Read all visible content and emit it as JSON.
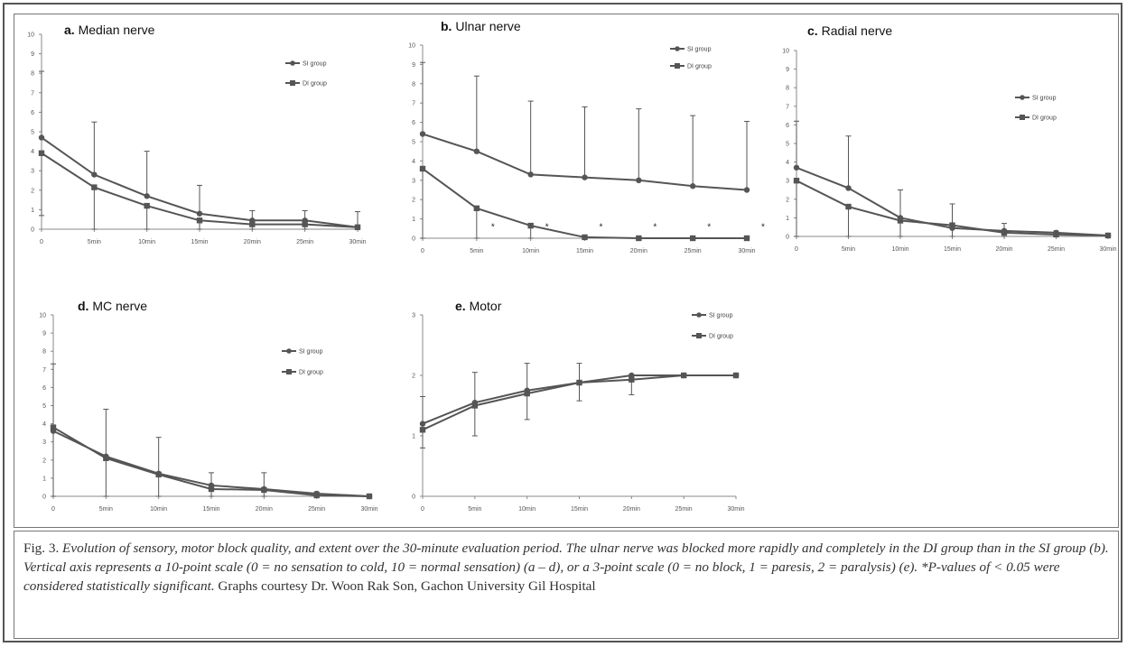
{
  "x_categories": [
    "0",
    "5min",
    "10min",
    "15min",
    "20min",
    "25min",
    "30min"
  ],
  "legend": {
    "si": "SI group",
    "di": "DI group"
  },
  "chart_data": [
    {
      "id": "a",
      "type": "line",
      "letter": "a.",
      "title": "Median nerve",
      "ylim": [
        0,
        10
      ],
      "yticks": [
        0,
        1,
        2,
        3,
        4,
        5,
        6,
        7,
        8,
        9,
        10
      ],
      "series": [
        {
          "name": "SI group",
          "marker": "circle",
          "values": [
            4.7,
            2.8,
            1.7,
            0.8,
            0.45,
            0.45,
            0.1
          ],
          "err_up": [
            3.4,
            2.7,
            2.3,
            1.45,
            0.5,
            0.5,
            0.8
          ]
        },
        {
          "name": "DI group",
          "marker": "square",
          "values": [
            3.9,
            2.15,
            1.2,
            0.45,
            0.25,
            0.25,
            0.1
          ],
          "err_down": [
            3.2,
            2.15,
            1.2,
            0.45,
            0.25,
            0.25,
            0.1
          ]
        }
      ],
      "asterisks": []
    },
    {
      "id": "b",
      "type": "line",
      "letter": "b.",
      "title": "Ulnar nerve",
      "ylim": [
        0,
        10
      ],
      "yticks": [
        0,
        1,
        2,
        3,
        4,
        5,
        6,
        7,
        8,
        9,
        10
      ],
      "series": [
        {
          "name": "SI group",
          "marker": "circle",
          "values": [
            5.4,
            4.5,
            3.3,
            3.15,
            3.0,
            2.7,
            2.5
          ],
          "err_up": [
            3.7,
            3.9,
            3.8,
            3.65,
            3.7,
            3.65,
            3.55
          ]
        },
        {
          "name": "DI group",
          "marker": "square",
          "values": [
            3.6,
            1.55,
            0.65,
            0.05,
            0.0,
            0.0,
            0.0
          ],
          "err_down": [
            3.6,
            1.55,
            0.65,
            0.05,
            0,
            0,
            0
          ]
        }
      ],
      "asterisks": [
        1,
        2,
        3,
        4,
        5,
        6
      ],
      "asterisk_text": "*"
    },
    {
      "id": "c",
      "type": "line",
      "letter": "c.",
      "title": "Radial nerve",
      "ylim": [
        0,
        10
      ],
      "yticks": [
        0,
        1,
        2,
        3,
        4,
        5,
        6,
        7,
        8,
        9,
        10
      ],
      "series": [
        {
          "name": "SI group",
          "marker": "circle",
          "values": [
            3.7,
            2.6,
            1.0,
            0.45,
            0.3,
            0.2,
            0.05
          ],
          "err_up": [
            2.5,
            2.8,
            1.5,
            1.3,
            0.4,
            0.1,
            0.05
          ]
        },
        {
          "name": "DI group",
          "marker": "square",
          "values": [
            3.0,
            1.6,
            0.85,
            0.6,
            0.2,
            0.1,
            0.05
          ],
          "err_down": [
            3.0,
            1.6,
            0.85,
            0.6,
            0.2,
            0.1,
            0.05
          ]
        }
      ],
      "asterisks": []
    },
    {
      "id": "d",
      "type": "line",
      "letter": "d.",
      "title": "MC nerve",
      "ylim": [
        0,
        10
      ],
      "yticks": [
        0,
        1,
        2,
        3,
        4,
        5,
        6,
        7,
        8,
        9,
        10
      ],
      "series": [
        {
          "name": "SI group",
          "marker": "circle",
          "values": [
            3.6,
            2.2,
            1.25,
            0.6,
            0.4,
            0.15,
            0.0
          ],
          "err_up": [
            3.7,
            2.6,
            2.0,
            0.7,
            0.9,
            0.1,
            0.05
          ]
        },
        {
          "name": "DI group",
          "marker": "square",
          "values": [
            3.8,
            2.1,
            1.2,
            0.4,
            0.35,
            0.05,
            0.0
          ],
          "err_down": [
            3.8,
            2.1,
            1.2,
            0.4,
            0.35,
            0.05,
            0.0
          ]
        }
      ],
      "asterisks": []
    },
    {
      "id": "e",
      "type": "line",
      "letter": "e.",
      "title": "Motor",
      "ylim": [
        0,
        3
      ],
      "yticks": [
        0,
        1,
        2,
        3
      ],
      "series": [
        {
          "name": "SI group",
          "marker": "circle",
          "values": [
            1.2,
            1.55,
            1.75,
            1.88,
            2.0,
            2.0,
            2.0
          ],
          "err_up": [
            0.45,
            0.5,
            0.45,
            0.32,
            0.0,
            0.0,
            0.0
          ]
        },
        {
          "name": "DI group",
          "marker": "square",
          "values": [
            1.1,
            1.5,
            1.7,
            1.88,
            1.93,
            2.0,
            2.0
          ],
          "err_down": [
            0.3,
            0.5,
            0.43,
            0.3,
            0.25,
            0.0,
            0.0
          ]
        }
      ],
      "asterisks": []
    }
  ],
  "caption": {
    "fig_label": "Fig. 3.",
    "description": "Evolution of sensory, motor block quality, and extent over the 30-minute evaluation period. The ulnar nerve was blocked more rapidly and completely in the DI group than in the SI group (b). Vertical axis represents a 10-point scale (0 = no sensation to cold, 10 = normal sensation) (a – d), or a 3-point scale (0 = no block, 1 = paresis, 2 = paralysis) (e). *P-values of < 0.05 were considered statistically significant.",
    "credit": "Graphs courtesy Dr. Woon Rak Son, Gachon University Gil Hospital"
  }
}
